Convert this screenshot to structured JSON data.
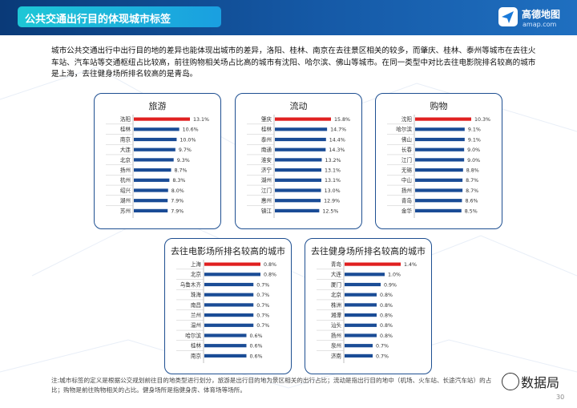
{
  "header": {
    "title": "公共交通出行目的体现城市标签",
    "brand": "高德地图",
    "brand_url": "amap.com"
  },
  "intro": "城市公共交通出行中出行目的地的差异也能体现出城市的差异，洛阳、桂林、南京在去往景区相关的较多，而肇庆、桂林、泰州等城市在去往火车站、汽车站等交通枢纽占比较高，前往购物相关场占比高的城市有沈阳、哈尔滨、佛山等城市。在同一类型中对比去往电影院排名较高的城市是上海，去往健身场所排名较高的是青岛。",
  "note": "注:城市标签的定义是根据公交规划前往目的地类型进行划分，旅游是出行目的地为景区相关的出行占比；流动是指出行目的地中（机场、火车站、长途汽车站）的占比；购物是前往购物相关的占比。健身场所是指健身房、体育场等场所。",
  "watermark": "数据局",
  "page_number": "30",
  "colors": {
    "highlight": "#e02020",
    "bar": "#1a4c96",
    "frame": "#1e4f91"
  },
  "chart_data": [
    {
      "type": "bar",
      "orientation": "horizontal",
      "title": "旅游",
      "categories": [
        "洛阳",
        "桂林",
        "南京",
        "大连",
        "北京",
        "扬州",
        "杭州",
        "绍兴",
        "湖州",
        "苏州"
      ],
      "values": [
        13.1,
        10.6,
        10.0,
        9.7,
        9.3,
        8.7,
        8.3,
        8.0,
        7.9,
        7.9
      ],
      "labels": [
        "13.1%",
        "10.6%",
        "10.0%",
        "9.7%",
        "9.3%",
        "8.7%",
        "8.3%",
        "8.0%",
        "7.9%",
        "7.9%"
      ]
    },
    {
      "type": "bar",
      "orientation": "horizontal",
      "title": "流动",
      "categories": [
        "肇庆",
        "桂林",
        "泰州",
        "南通",
        "淮安",
        "济宁",
        "湖州",
        "江门",
        "惠州",
        "镇江"
      ],
      "values": [
        15.8,
        14.7,
        14.4,
        14.3,
        13.2,
        13.1,
        13.1,
        13.0,
        12.9,
        12.5
      ],
      "labels": [
        "15.8%",
        "14.7%",
        "14.4%",
        "14.3%",
        "13.2%",
        "13.1%",
        "13.1%",
        "13.0%",
        "12.9%",
        "12.5%"
      ]
    },
    {
      "type": "bar",
      "orientation": "horizontal",
      "title": "购物",
      "categories": [
        "沈阳",
        "哈尔滨",
        "佛山",
        "长春",
        "江门",
        "无锡",
        "中山",
        "扬州",
        "青岛",
        "金华"
      ],
      "values": [
        10.3,
        9.1,
        9.1,
        9.0,
        9.0,
        8.8,
        8.7,
        8.7,
        8.6,
        8.5
      ],
      "labels": [
        "10.3%",
        "9.1%",
        "9.1%",
        "9.0%",
        "9.0%",
        "8.8%",
        "8.7%",
        "8.7%",
        "8.6%",
        "8.5%"
      ]
    },
    {
      "type": "bar",
      "orientation": "horizontal",
      "title": "去往电影场所排名较高的城市",
      "categories": [
        "上海",
        "北京",
        "乌鲁木齐",
        "珠海",
        "南昌",
        "兰州",
        "温州",
        "哈尔滨",
        "桂林",
        "南京"
      ],
      "values": [
        0.8,
        0.8,
        0.7,
        0.7,
        0.7,
        0.7,
        0.7,
        0.6,
        0.6,
        0.6
      ],
      "labels": [
        "0.8%",
        "0.8%",
        "0.7%",
        "0.7%",
        "0.7%",
        "0.7%",
        "0.7%",
        "0.6%",
        "0.6%",
        "0.6%"
      ]
    },
    {
      "type": "bar",
      "orientation": "horizontal",
      "title": "去往健身场所排名较高的城市",
      "categories": [
        "青岛",
        "大连",
        "厦门",
        "北京",
        "株洲",
        "湘潭",
        "汕头",
        "扬州",
        "泉州",
        "济南"
      ],
      "values": [
        1.4,
        1.0,
        0.9,
        0.8,
        0.8,
        0.8,
        0.8,
        0.8,
        0.7,
        0.7
      ],
      "labels": [
        "1.4%",
        "1.0%",
        "0.9%",
        "0.8%",
        "0.8%",
        "0.8%",
        "0.8%",
        "0.8%",
        "0.7%",
        "0.7%"
      ]
    }
  ]
}
